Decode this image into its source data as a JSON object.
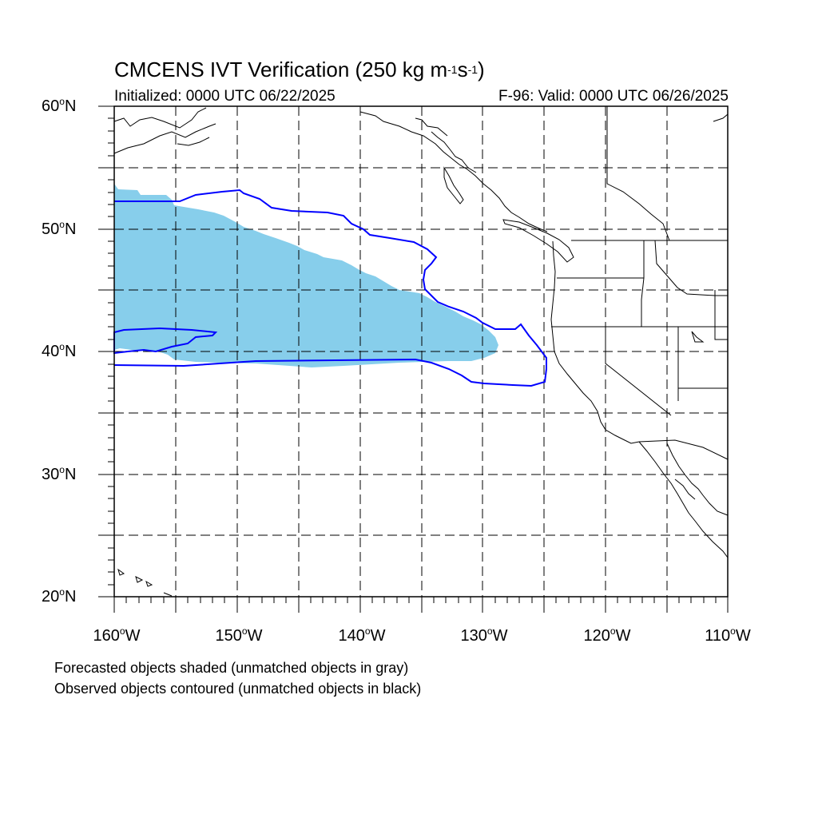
{
  "title": {
    "main": "CMCENS IVT Verification (250 kg m",
    "exp1": "-1",
    "mid": "s",
    "exp2": "-1",
    "end": ")"
  },
  "subtitle": {
    "left": "Initialized: 0000 UTC 06/22/2025",
    "right": "F-96: Valid: 0000 UTC 06/26/2025"
  },
  "lat_labels": [
    "60",
    "50",
    "40",
    "30",
    "20"
  ],
  "lat_suffix": "N",
  "lon_labels": [
    "160",
    "150",
    "140",
    "130",
    "120",
    "110"
  ],
  "lon_suffix": "W",
  "degree_symbol": "o",
  "notes": {
    "line1": "Forecasted objects shaded (unmatched objects in gray)",
    "line2": "Observed objects contoured (unmatched objects in black)"
  },
  "colors": {
    "forecast_fill": "#87ceeb",
    "observed_contour": "#0000ff",
    "coastline": "#000000",
    "gridline": "#000000"
  }
}
